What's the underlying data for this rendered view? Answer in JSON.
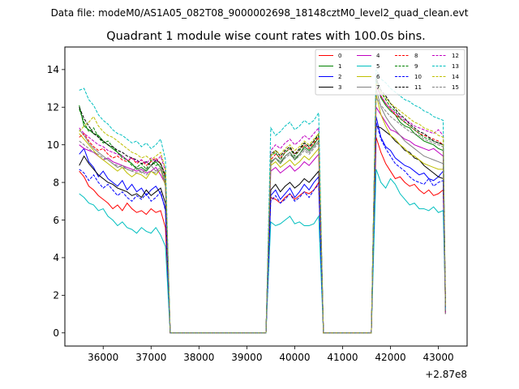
{
  "chart_data": {
    "type": "line",
    "suptitle": "Data file: modeM0/AS1A05_082T08_9000002698_18148cztM0_level2_quad_clean.evt",
    "title": "Quadrant 1 module wise count rates with 100.0s bins.",
    "xlabel": "",
    "ylabel": "",
    "x_offset_label": "+2.87e8",
    "xlim": [
      35200,
      43600
    ],
    "ylim": [
      -0.7,
      15.2
    ],
    "x_ticks": [
      36000,
      37000,
      38000,
      39000,
      40000,
      41000,
      42000,
      43000
    ],
    "x_tick_labels": [
      "36000",
      "37000",
      "38000",
      "39000",
      "40000",
      "41000",
      "42000",
      "43000"
    ],
    "y_ticks": [
      0,
      2,
      4,
      6,
      8,
      10,
      12,
      14
    ],
    "y_tick_labels": [
      "0",
      "2",
      "4",
      "6",
      "8",
      "10",
      "12",
      "14"
    ],
    "grid": false,
    "legend_position": "top-right",
    "segments": [
      {
        "x_start": 35500,
        "n_points": 19,
        "gap_x": 37400
      },
      {
        "x_start": 39500,
        "n_points": 11,
        "gap_x": 40600
      },
      {
        "x_start": 41700,
        "n_points": 15,
        "end_x": 43150
      }
    ],
    "series": [
      {
        "name": "0",
        "color": "#ff0000",
        "dash": "solid",
        "s1": [
          8.6,
          8.3,
          7.8,
          7.6,
          7.3,
          7.1,
          6.9,
          6.6,
          6.8,
          6.5,
          6.9,
          6.6,
          6.4,
          6.5,
          6.3,
          6.6,
          6.4,
          6.5,
          5.6
        ],
        "s2": [
          7.2,
          7.1,
          6.9,
          7.2,
          7.4,
          7.1,
          7.3,
          7.5,
          7.4,
          7.6,
          8.0
        ],
        "s3": [
          10.4,
          9.6,
          9.0,
          8.6,
          8.2,
          8.3,
          8.0,
          7.8,
          7.9,
          7.6,
          7.4,
          7.6,
          7.3,
          7.4,
          7.6
        ]
      },
      {
        "name": "1",
        "color": "#008000",
        "dash": "solid",
        "s1": [
          12.1,
          11.0,
          10.8,
          10.6,
          10.5,
          10.2,
          10.0,
          9.8,
          9.6,
          9.4,
          9.2,
          9.0,
          8.7,
          8.8,
          8.6,
          8.9,
          9.1,
          8.8,
          8.0
        ],
        "s2": [
          9.1,
          9.3,
          9.0,
          9.4,
          9.6,
          9.2,
          9.5,
          9.9,
          9.7,
          10.0,
          10.4
        ],
        "s3": [
          13.4,
          12.5,
          12.1,
          11.8,
          11.6,
          11.2,
          11.0,
          10.9,
          10.6,
          10.4,
          10.2,
          10.1,
          10.0,
          9.8,
          9.7
        ]
      },
      {
        "name": "2",
        "color": "#0000ff",
        "dash": "solid",
        "s1": [
          9.5,
          9.8,
          9.1,
          8.8,
          8.3,
          8.6,
          8.2,
          8.0,
          7.8,
          8.1,
          7.6,
          7.9,
          7.5,
          7.7,
          7.3,
          7.6,
          7.8,
          7.4,
          6.6
        ],
        "s2": [
          7.3,
          7.6,
          7.1,
          7.4,
          7.7,
          7.2,
          7.5,
          7.9,
          7.6,
          8.0,
          8.3
        ],
        "s3": [
          11.5,
          10.4,
          9.9,
          9.7,
          9.3,
          9.1,
          8.9,
          8.8,
          8.6,
          8.4,
          8.5,
          8.2,
          8.1,
          8.3,
          8.6
        ]
      },
      {
        "name": "3",
        "color": "#000000",
        "dash": "solid",
        "s1": [
          8.9,
          9.4,
          9.0,
          8.7,
          8.4,
          8.2,
          8.0,
          7.9,
          7.7,
          7.6,
          7.5,
          7.3,
          7.4,
          7.2,
          7.6,
          7.3,
          7.5,
          7.7,
          6.9
        ],
        "s2": [
          7.6,
          7.9,
          7.5,
          7.8,
          8.0,
          7.7,
          7.9,
          8.2,
          8.0,
          8.3,
          8.6
        ],
        "s3": [
          11.0,
          10.9,
          10.7,
          10.5,
          10.2,
          10.0,
          9.7,
          9.6,
          9.3,
          9.2,
          8.9,
          8.7,
          8.5,
          8.3,
          8.2
        ]
      },
      {
        "name": "4",
        "color": "#c000c0",
        "dash": "solid",
        "s1": [
          10.0,
          9.8,
          9.7,
          9.6,
          9.4,
          9.2,
          9.3,
          9.1,
          9.0,
          8.9,
          8.8,
          8.7,
          8.6,
          8.7,
          8.5,
          8.6,
          8.8,
          8.4,
          7.9
        ],
        "s2": [
          8.6,
          8.8,
          8.5,
          8.7,
          8.9,
          8.6,
          8.8,
          9.1,
          8.9,
          9.2,
          9.5
        ],
        "s3": [
          12.0,
          11.6,
          11.2,
          10.8,
          10.7,
          10.5,
          10.3,
          10.2,
          10.0,
          9.9,
          9.8,
          9.7,
          9.8,
          9.6,
          9.4
        ]
      },
      {
        "name": "5",
        "color": "#00bfbf",
        "dash": "solid",
        "s1": [
          7.4,
          7.2,
          6.9,
          6.8,
          6.5,
          6.6,
          6.2,
          6.0,
          5.7,
          5.9,
          5.6,
          5.5,
          5.3,
          5.6,
          5.4,
          5.3,
          5.6,
          5.2,
          4.6
        ],
        "s2": [
          5.9,
          5.7,
          5.8,
          6.0,
          6.2,
          5.8,
          5.9,
          5.7,
          5.7,
          5.8,
          6.2
        ],
        "s3": [
          8.7,
          8.0,
          7.7,
          8.2,
          7.9,
          7.4,
          7.1,
          6.8,
          6.9,
          6.6,
          6.6,
          6.5,
          6.7,
          6.4,
          6.5
        ]
      },
      {
        "name": "6",
        "color": "#bfbf00",
        "dash": "solid",
        "s1": [
          10.6,
          10.3,
          10.0,
          9.7,
          9.4,
          9.2,
          9.0,
          8.8,
          8.6,
          8.8,
          8.5,
          8.3,
          8.5,
          8.4,
          8.2,
          8.6,
          8.4,
          8.7,
          7.8
        ],
        "s2": [
          8.9,
          9.1,
          8.8,
          9.0,
          9.2,
          8.9,
          9.1,
          9.4,
          9.2,
          9.5,
          9.8
        ],
        "s3": [
          12.7,
          11.6,
          11.0,
          10.5,
          10.3,
          10.0,
          9.8,
          9.5,
          9.4,
          9.2,
          9.0,
          8.9,
          8.8,
          8.7,
          8.7
        ]
      },
      {
        "name": "7",
        "color": "#808080",
        "dash": "solid",
        "s1": [
          10.8,
          10.5,
          10.1,
          9.8,
          9.6,
          9.4,
          9.2,
          9.0,
          8.8,
          8.9,
          8.7,
          8.6,
          8.8,
          8.5,
          8.7,
          8.9,
          8.6,
          8.8,
          8.0
        ],
        "s2": [
          9.0,
          9.3,
          9.1,
          9.4,
          9.6,
          9.3,
          9.5,
          9.8,
          9.6,
          9.9,
          10.2
        ],
        "s3": [
          13.0,
          12.0,
          11.5,
          11.1,
          10.8,
          10.5,
          10.2,
          10.0,
          9.8,
          9.6,
          9.4,
          9.3,
          9.2,
          9.1,
          9.0
        ]
      },
      {
        "name": "8",
        "color": "#ff0000",
        "dash": "dashed",
        "s1": [
          10.4,
          10.6,
          10.2,
          9.9,
          9.7,
          9.8,
          9.5,
          9.3,
          9.4,
          9.2,
          9.1,
          9.3,
          9.0,
          9.2,
          8.9,
          9.1,
          9.3,
          9.0,
          8.3
        ],
        "s2": [
          9.2,
          9.5,
          9.3,
          9.6,
          9.8,
          9.5,
          9.7,
          10.0,
          9.8,
          10.1,
          10.4
        ],
        "s3": [
          13.2,
          12.6,
          12.2,
          11.9,
          11.6,
          11.4,
          11.2,
          11.0,
          10.8,
          10.6,
          10.5,
          10.4,
          10.3,
          10.2,
          10.0
        ]
      },
      {
        "name": "9",
        "color": "#008000",
        "dash": "dashed",
        "s1": [
          11.9,
          11.2,
          10.7,
          10.9,
          10.4,
          10.1,
          10.2,
          9.9,
          9.6,
          9.3,
          9.2,
          8.9,
          8.8,
          9.0,
          8.7,
          9.2,
          8.9,
          9.0,
          8.2
        ],
        "s2": [
          9.4,
          9.6,
          9.2,
          9.6,
          9.8,
          9.4,
          9.7,
          10.1,
          9.9,
          10.2,
          10.6
        ],
        "s3": [
          13.6,
          12.8,
          12.4,
          12.0,
          11.8,
          11.4,
          11.2,
          11.0,
          10.8,
          10.6,
          10.4,
          10.3,
          10.2,
          10.1,
          10.0
        ]
      },
      {
        "name": "10",
        "color": "#0000ff",
        "dash": "dashed",
        "s1": [
          8.7,
          8.5,
          8.1,
          8.4,
          8.0,
          7.7,
          7.9,
          7.6,
          7.3,
          7.5,
          7.2,
          7.0,
          7.3,
          7.1,
          7.4,
          7.0,
          7.2,
          7.5,
          6.5
        ],
        "s2": [
          7.0,
          7.3,
          6.9,
          7.1,
          7.4,
          7.0,
          7.2,
          7.5,
          7.2,
          7.6,
          7.9
        ],
        "s3": [
          11.2,
          10.3,
          9.8,
          9.4,
          9.0,
          8.8,
          8.6,
          8.3,
          8.1,
          8.0,
          7.9,
          8.2,
          7.8,
          8.0,
          8.1
        ]
      },
      {
        "name": "11",
        "color": "#000000",
        "dash": "dashed",
        "s1": [
          12.0,
          11.4,
          11.0,
          10.6,
          10.4,
          10.2,
          10.0,
          9.9,
          9.7,
          9.6,
          9.4,
          9.3,
          9.2,
          9.0,
          9.1,
          8.9,
          9.2,
          9.0,
          8.4
        ],
        "s2": [
          9.5,
          9.7,
          9.4,
          9.7,
          9.9,
          9.5,
          9.8,
          10.1,
          9.9,
          10.2,
          10.5
        ],
        "s3": [
          13.5,
          12.9,
          12.6,
          12.2,
          11.9,
          11.6,
          11.4,
          11.1,
          10.9,
          10.7,
          10.6,
          10.4,
          10.2,
          10.1,
          10.0
        ]
      },
      {
        "name": "12",
        "color": "#c000c0",
        "dash": "dashed",
        "s1": [
          10.9,
          10.6,
          10.4,
          10.2,
          10.0,
          9.9,
          9.7,
          9.6,
          9.5,
          9.4,
          9.2,
          9.3,
          9.1,
          9.2,
          9.0,
          9.3,
          9.1,
          9.4,
          8.6
        ],
        "s2": [
          9.7,
          10.0,
          9.8,
          10.1,
          10.3,
          10.0,
          10.2,
          10.5,
          10.3,
          10.6,
          10.9
        ],
        "s3": [
          13.1,
          12.6,
          12.2,
          11.9,
          11.7,
          11.5,
          11.3,
          11.2,
          11.0,
          10.9,
          10.8,
          10.7,
          10.6,
          10.8,
          10.5
        ]
      },
      {
        "name": "13",
        "color": "#00bfbf",
        "dash": "dashed",
        "s1": [
          12.9,
          13.0,
          12.4,
          12.1,
          11.6,
          11.3,
          11.1,
          10.8,
          10.6,
          10.5,
          10.3,
          10.1,
          10.2,
          9.9,
          10.1,
          9.8,
          10.0,
          10.3,
          9.2
        ],
        "s2": [
          10.9,
          10.5,
          10.7,
          11.0,
          11.2,
          10.8,
          11.0,
          11.3,
          11.1,
          11.3,
          11.7
        ],
        "s3": [
          14.0,
          13.5,
          13.3,
          13.0,
          12.8,
          12.6,
          12.4,
          12.3,
          12.1,
          12.0,
          11.8,
          11.7,
          11.5,
          11.4,
          11.3
        ]
      },
      {
        "name": "14",
        "color": "#bfbf00",
        "dash": "dashed",
        "s1": [
          10.7,
          11.0,
          11.2,
          11.5,
          11.0,
          10.7,
          10.5,
          10.4,
          10.2,
          10.0,
          9.8,
          9.6,
          9.5,
          9.3,
          9.4,
          9.2,
          9.4,
          9.6,
          8.7
        ],
        "s2": [
          9.4,
          9.7,
          9.5,
          9.8,
          10.0,
          9.7,
          9.9,
          10.2,
          10.0,
          10.3,
          10.6
        ],
        "s3": [
          13.3,
          12.8,
          12.5,
          12.2,
          12.0,
          11.8,
          11.6,
          11.4,
          11.2,
          11.1,
          10.9,
          10.8,
          10.7,
          10.5,
          10.4
        ]
      },
      {
        "name": "15",
        "color": "#808080",
        "dash": "dashed",
        "s1": [
          10.2,
          10.0,
          9.8,
          9.6,
          9.5,
          9.3,
          9.2,
          9.0,
          8.9,
          8.8,
          8.7,
          8.6,
          8.5,
          8.6,
          8.4,
          8.6,
          8.5,
          8.7,
          7.9
        ],
        "s2": [
          9.1,
          9.3,
          9.0,
          9.3,
          9.5,
          9.2,
          9.4,
          9.7,
          9.5,
          9.8,
          10.1
        ],
        "s3": [
          12.5,
          12.1,
          11.8,
          11.5,
          11.3,
          11.1,
          10.9,
          10.7,
          10.6,
          10.5,
          10.3,
          10.2,
          10.1,
          10.0,
          9.9
        ]
      }
    ]
  }
}
